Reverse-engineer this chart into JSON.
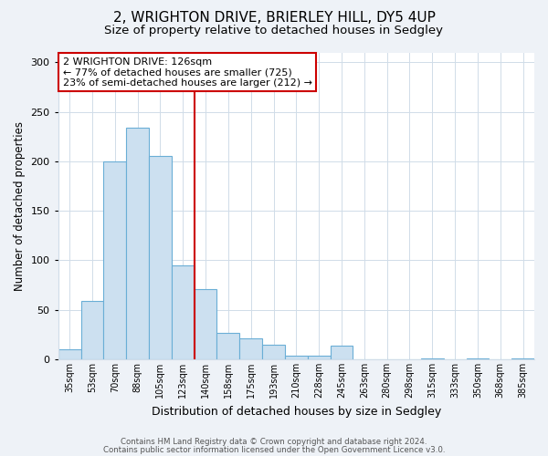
{
  "title": "2, WRIGHTON DRIVE, BRIERLEY HILL, DY5 4UP",
  "subtitle": "Size of property relative to detached houses in Sedgley",
  "xlabel": "Distribution of detached houses by size in Sedgley",
  "ylabel": "Number of detached properties",
  "bar_labels": [
    "35sqm",
    "53sqm",
    "70sqm",
    "88sqm",
    "105sqm",
    "123sqm",
    "140sqm",
    "158sqm",
    "175sqm",
    "193sqm",
    "210sqm",
    "228sqm",
    "245sqm",
    "263sqm",
    "280sqm",
    "298sqm",
    "315sqm",
    "333sqm",
    "350sqm",
    "368sqm",
    "385sqm"
  ],
  "bar_values": [
    10,
    59,
    200,
    234,
    205,
    95,
    71,
    27,
    21,
    15,
    4,
    4,
    14,
    0,
    0,
    0,
    1,
    0,
    1,
    0,
    1
  ],
  "bar_color": "#cce0f0",
  "bar_edge_color": "#6aaed6",
  "vline_color": "#cc0000",
  "annotation_title": "2 WRIGHTON DRIVE: 126sqm",
  "annotation_line1": "← 77% of detached houses are smaller (725)",
  "annotation_line2": "23% of semi-detached houses are larger (212) →",
  "annotation_box_color": "#cc0000",
  "ylim": [
    0,
    310
  ],
  "yticks": [
    0,
    50,
    100,
    150,
    200,
    250,
    300
  ],
  "footer1": "Contains HM Land Registry data © Crown copyright and database right 2024.",
  "footer2": "Contains public sector information licensed under the Open Government Licence v3.0.",
  "bg_color": "#eef2f7",
  "plot_bg_color": "#ffffff",
  "title_fontsize": 11,
  "subtitle_fontsize": 9.5,
  "grid_color": "#d0dce8"
}
